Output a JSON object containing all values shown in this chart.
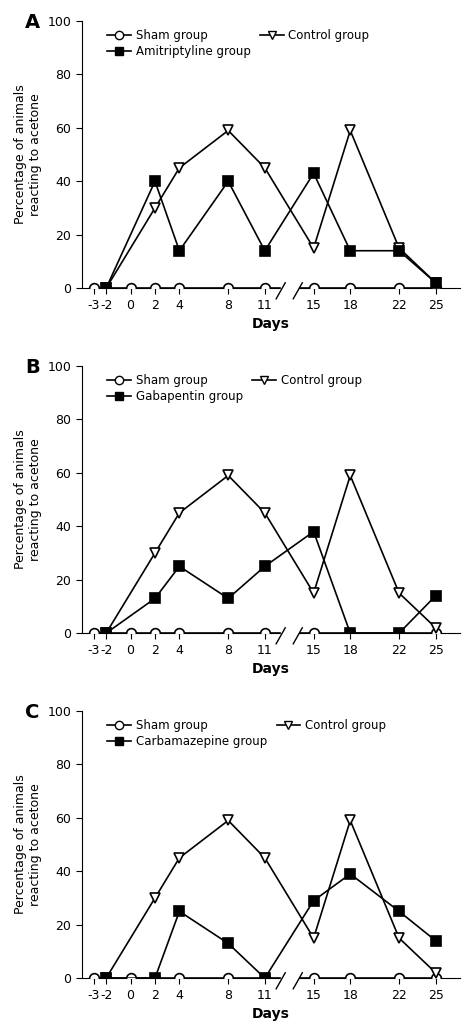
{
  "panels": [
    {
      "label": "A",
      "drug_label": "Amitriptyline group",
      "sham": {
        "x": [
          -3,
          -2,
          0,
          2,
          4,
          8,
          11,
          15,
          18,
          22,
          25
        ],
        "y": [
          0,
          0,
          0,
          0,
          0,
          0,
          0,
          0,
          0,
          0,
          0
        ]
      },
      "control": {
        "x": [
          -2,
          2,
          4,
          8,
          11,
          15,
          18,
          22,
          25
        ],
        "y": [
          0,
          30,
          45,
          59,
          45,
          15,
          59,
          15,
          2
        ]
      },
      "drug": {
        "x": [
          -2,
          2,
          4,
          8,
          11,
          15,
          18,
          22,
          25
        ],
        "y": [
          0,
          40,
          14,
          40,
          14,
          43,
          14,
          14,
          2
        ]
      }
    },
    {
      "label": "B",
      "drug_label": "Gabapentin group",
      "sham": {
        "x": [
          -3,
          -2,
          0,
          2,
          4,
          8,
          11,
          15,
          18,
          22,
          25
        ],
        "y": [
          0,
          0,
          0,
          0,
          0,
          0,
          0,
          0,
          0,
          0,
          0
        ]
      },
      "control": {
        "x": [
          -2,
          2,
          4,
          8,
          11,
          15,
          18,
          22,
          25
        ],
        "y": [
          0,
          30,
          45,
          59,
          45,
          15,
          59,
          15,
          2
        ]
      },
      "drug": {
        "x": [
          -2,
          2,
          4,
          8,
          11,
          15,
          18,
          22,
          25
        ],
        "y": [
          0,
          13,
          25,
          13,
          25,
          38,
          0,
          0,
          14
        ]
      }
    },
    {
      "label": "C",
      "drug_label": "Carbamazepine group",
      "sham": {
        "x": [
          -3,
          -2,
          0,
          2,
          4,
          8,
          11,
          15,
          18,
          22,
          25
        ],
        "y": [
          0,
          0,
          0,
          0,
          0,
          0,
          0,
          0,
          0,
          0,
          0
        ]
      },
      "control": {
        "x": [
          -2,
          2,
          4,
          8,
          11,
          15,
          18,
          22,
          25
        ],
        "y": [
          0,
          30,
          45,
          59,
          45,
          15,
          59,
          15,
          2
        ]
      },
      "drug": {
        "x": [
          -2,
          2,
          4,
          8,
          11,
          15,
          18,
          22,
          25
        ],
        "y": [
          0,
          0,
          25,
          13,
          0,
          29,
          39,
          25,
          14
        ]
      }
    }
  ],
  "ylabel": "Percentage of animals\nreacting to acetone",
  "xlabel": "Days",
  "ylim": [
    0,
    100
  ],
  "yticks": [
    0,
    20,
    40,
    60,
    80,
    100
  ],
  "xticks": [
    -3,
    -2,
    0,
    2,
    4,
    8,
    11,
    15,
    18,
    22,
    25
  ],
  "sham_label": "Sham group",
  "control_label": "Control group",
  "line_color": "#000000",
  "sham_marker": "o",
  "control_marker": "v",
  "drug_marker": "s",
  "background_color": "#ffffff"
}
